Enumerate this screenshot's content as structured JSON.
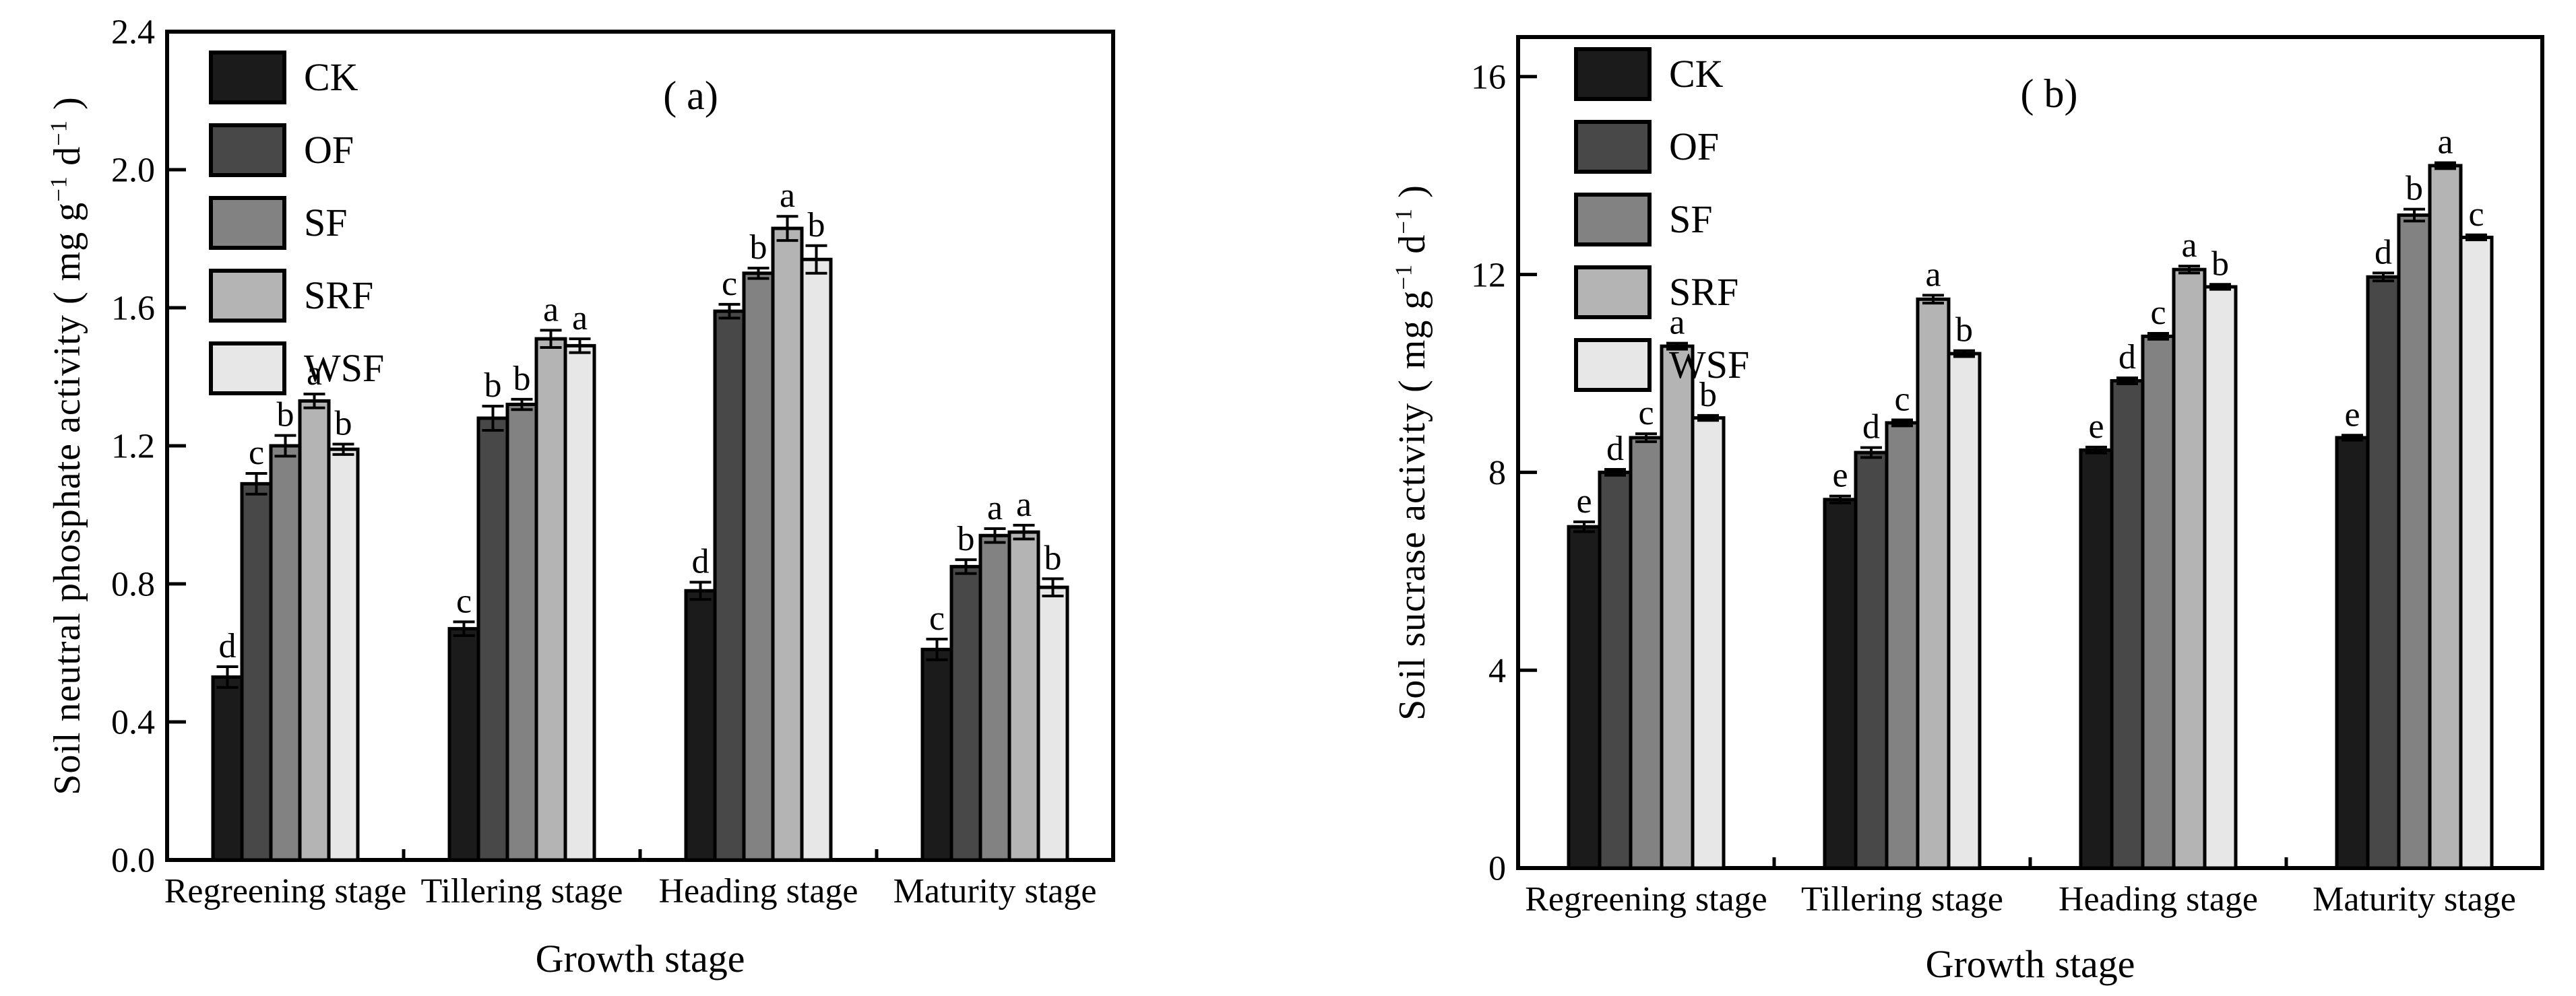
{
  "figure_title": "",
  "chart_data": [
    {
      "type": "bar",
      "panel_label": "( a)",
      "ylabel": {
        "prefix": "Soil neutral phosphate activity ( mg g",
        "sup1": "−1",
        "mid": " d",
        "sup2": "−1",
        "suffix": " )"
      },
      "ylabel_plain": "Soil neutral phosphate activity ( mg g-1 d-1 )",
      "xlabel": "Growth stage",
      "categories": [
        "Regreening stage",
        "Tillering stage",
        "Heading stage",
        "Maturity stage"
      ],
      "series": [
        {
          "name": "CK",
          "color": "#1b1b1b",
          "values": [
            0.53,
            0.67,
            0.78,
            0.61
          ],
          "errors": [
            0.03,
            0.02,
            0.025,
            0.03
          ],
          "letters": [
            "d",
            "c",
            "d",
            "c"
          ]
        },
        {
          "name": "OF",
          "color": "#484848",
          "values": [
            1.09,
            1.28,
            1.59,
            0.85
          ],
          "errors": [
            0.03,
            0.035,
            0.02,
            0.02
          ],
          "letters": [
            "c",
            "b",
            "c",
            "b"
          ]
        },
        {
          "name": "SF",
          "color": "#828282",
          "values": [
            1.2,
            1.32,
            1.7,
            0.94
          ],
          "errors": [
            0.03,
            0.015,
            0.015,
            0.02
          ],
          "letters": [
            "b",
            "b",
            "b",
            "a"
          ]
        },
        {
          "name": "SRF",
          "color": "#b4b4b4",
          "values": [
            1.33,
            1.51,
            1.83,
            0.95
          ],
          "errors": [
            0.02,
            0.025,
            0.035,
            0.02
          ],
          "letters": [
            "a",
            "a",
            "a",
            "a"
          ]
        },
        {
          "name": "WSF",
          "color": "#e7e7e7",
          "values": [
            1.19,
            1.49,
            1.74,
            0.79
          ],
          "errors": [
            0.015,
            0.02,
            0.04,
            0.025
          ],
          "letters": [
            "b",
            "a",
            "b",
            "b"
          ]
        }
      ],
      "ylim": [
        0,
        2.4
      ],
      "axis_frame_max": 2.4,
      "yticks": [
        0,
        0.4,
        0.8,
        1.2,
        1.6,
        2.0,
        2.4
      ],
      "ytick_labels": [
        "0.0",
        "0.4",
        "0.8",
        "1.2",
        "1.6",
        "2.0",
        "2.4"
      ],
      "grid": false,
      "legend_position": "upper-left-inside",
      "bar_edge_color": "#000000"
    },
    {
      "type": "bar",
      "panel_label": "( b)",
      "ylabel": {
        "prefix": "Soil sucrase activity ( mg g",
        "sup1": "−1",
        "mid": " d",
        "sup2": "−1",
        "suffix": " )"
      },
      "ylabel_plain": "Soil sucrase activity ( mg g-1 d-1 )",
      "xlabel": "Growth stage",
      "categories": [
        "Regreening stage",
        "Tillering stage",
        "Heading stage",
        "Maturity stage"
      ],
      "series": [
        {
          "name": "CK",
          "color": "#1b1b1b",
          "values": [
            6.9,
            7.45,
            8.45,
            8.7
          ],
          "errors": [
            0.1,
            0.07,
            0.06,
            0.05
          ],
          "letters": [
            "e",
            "e",
            "e",
            "e"
          ]
        },
        {
          "name": "OF",
          "color": "#484848",
          "values": [
            8.0,
            8.4,
            9.85,
            11.95
          ],
          "errors": [
            0.06,
            0.1,
            0.06,
            0.08
          ],
          "letters": [
            "d",
            "d",
            "d",
            "d"
          ]
        },
        {
          "name": "SF",
          "color": "#828282",
          "values": [
            8.7,
            9.0,
            10.75,
            13.2
          ],
          "errors": [
            0.08,
            0.06,
            0.06,
            0.12
          ],
          "letters": [
            "c",
            "c",
            "c",
            "b"
          ]
        },
        {
          "name": "SRF",
          "color": "#b4b4b4",
          "values": [
            10.55,
            11.5,
            12.1,
            14.2
          ],
          "errors": [
            0.06,
            0.08,
            0.07,
            0.06
          ],
          "letters": [
            "a",
            "a",
            "a",
            "a"
          ]
        },
        {
          "name": "WSF",
          "color": "#e7e7e7",
          "values": [
            9.1,
            10.4,
            11.75,
            12.75
          ],
          "errors": [
            0.05,
            0.06,
            0.05,
            0.05
          ],
          "letters": [
            "b",
            "b",
            "b",
            "c"
          ]
        }
      ],
      "ylim": [
        0,
        16
      ],
      "axis_frame_max": 16.8,
      "yticks": [
        0,
        4,
        8,
        12,
        16
      ],
      "ytick_labels": [
        "0",
        "4",
        "8",
        "12",
        "16"
      ],
      "grid": false,
      "legend_position": "upper-left-inside",
      "bar_edge_color": "#000000"
    }
  ]
}
